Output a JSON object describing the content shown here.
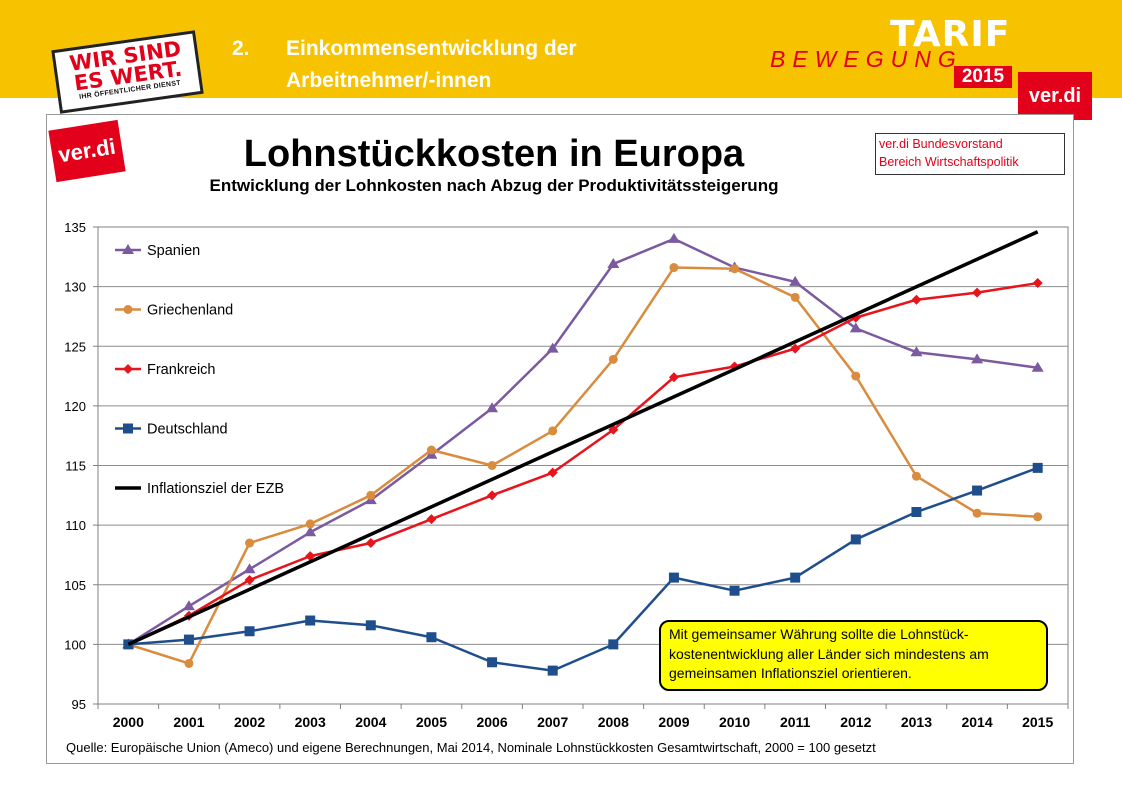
{
  "header": {
    "slogan_line1": "WIR SIND",
    "slogan_line2": "ES WERT.",
    "slogan_line3": "IHR ÖFFENTLICHER DIENST",
    "section_number": "2.",
    "section_title_line1": "Einkommensentwicklung der",
    "section_title_line2": "Arbeitnehmer/-innen",
    "campaign_word1": "TARIF",
    "campaign_word2": "BEWEGUNG",
    "campaign_year": "2015",
    "logo_text": "ver.di"
  },
  "colors": {
    "banner": "#f7c300",
    "brand_red": "#e2001a",
    "spanien": "#7b5aa0",
    "griechenland": "#d98b3e",
    "frankreich": "#e8141c",
    "deutschland": "#1f4e8c",
    "ezb": "#000000",
    "callout_bg": "#ffff00"
  },
  "slide": {
    "logo_text": "ver.di",
    "source_box_line1": "ver.di Bundesvorstand",
    "source_box_line2": "Bereich Wirtschaftspolitik",
    "callout_text": "Mit gemeinsamer Währung sollte die Lohnstück-kostenentwicklung aller Länder sich mindestens am gemeinsamen Inflationsziel orientieren.",
    "footnote": "Quelle: Europäische Union (Ameco) und eigene Berechnungen, Mai 2014, Nominale Lohnstückkosten Gesamtwirtschaft, 2000 = 100 gesetzt"
  },
  "chart_data": {
    "type": "line",
    "title": "Lohnstückkosten in Europa",
    "subtitle": "Entwicklung der Lohnkosten nach Abzug der Produktivitätssteigerung",
    "xlabel": "",
    "ylabel": "",
    "x": [
      "2000",
      "2001",
      "2002",
      "2003",
      "2004",
      "2005",
      "2006",
      "2007",
      "2008",
      "2009",
      "2010",
      "2011",
      "2012",
      "2013",
      "2014",
      "2015"
    ],
    "ylim": [
      95,
      135
    ],
    "yticks": [
      95,
      100,
      105,
      110,
      115,
      120,
      125,
      130,
      135
    ],
    "grid": true,
    "legend_position": "top-left",
    "series": [
      {
        "name": "Spanien",
        "color_key": "spanien",
        "marker": "triangle",
        "values": [
          100,
          103.2,
          106.3,
          109.4,
          112.1,
          115.9,
          119.8,
          124.8,
          131.9,
          134.0,
          131.6,
          130.4,
          126.5,
          124.5,
          123.9,
          123.2
        ]
      },
      {
        "name": "Griechenland",
        "color_key": "griechenland",
        "marker": "circle",
        "values": [
          100,
          98.4,
          108.5,
          110.1,
          112.5,
          116.3,
          115.0,
          117.9,
          123.9,
          131.6,
          131.5,
          129.1,
          122.5,
          114.1,
          111.0,
          110.7
        ]
      },
      {
        "name": "Frankreich",
        "color_key": "frankreich",
        "marker": "diamond",
        "values": [
          100,
          102.4,
          105.4,
          107.4,
          108.5,
          110.5,
          112.5,
          114.4,
          118.0,
          122.4,
          123.3,
          124.8,
          127.4,
          128.9,
          129.5,
          130.3
        ]
      },
      {
        "name": "Deutschland",
        "color_key": "deutschland",
        "marker": "square",
        "values": [
          100,
          100.4,
          101.1,
          102.0,
          101.6,
          100.6,
          98.5,
          97.8,
          100.0,
          105.6,
          104.5,
          105.6,
          108.8,
          111.1,
          112.9,
          114.8
        ]
      },
      {
        "name": "Inflationsziel der EZB",
        "color_key": "ezb",
        "marker": "none",
        "values": [
          100,
          102.0,
          104.0,
          106.1,
          108.2,
          110.4,
          112.6,
          114.9,
          117.2,
          119.5,
          121.9,
          124.3,
          126.8,
          129.4,
          131.9,
          134.6
        ]
      }
    ]
  }
}
